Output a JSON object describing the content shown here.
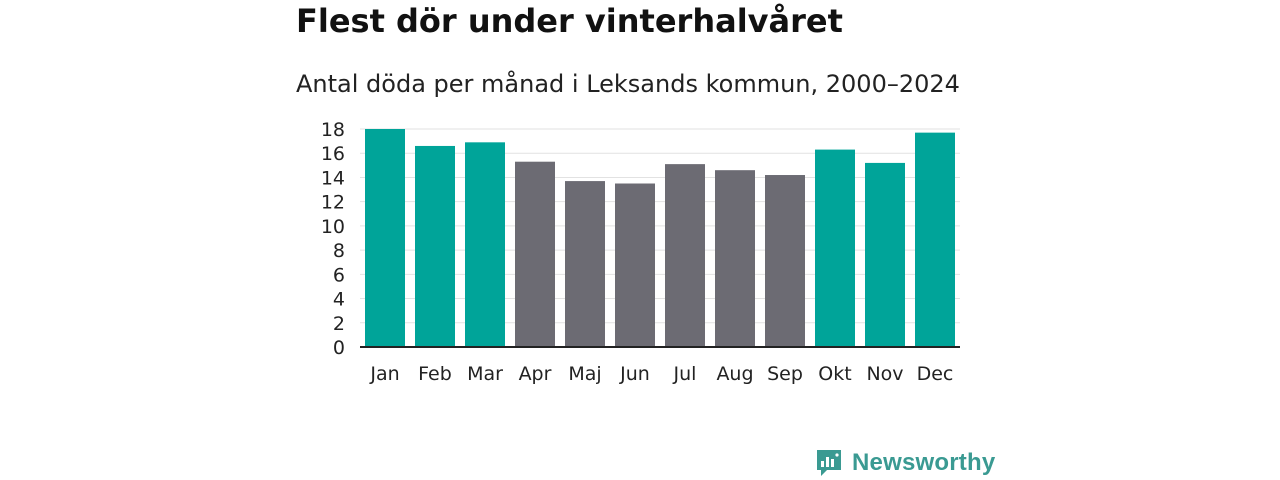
{
  "header": {
    "title": "Flest dör under vinterhalvåret",
    "subtitle": "Antal döda per månad i Leksands kommun, 2000–2024"
  },
  "brand": {
    "name": "Newsworthy",
    "icon": "newsworthy-logo-icon",
    "color": "#3a9a92"
  },
  "colors": {
    "winter": "#00a499",
    "summer": "#6c6b73",
    "grid": "#e2e2e2",
    "axis": "#222222"
  },
  "chart_data": {
    "type": "bar",
    "title": "Flest dör under vinterhalvåret",
    "subtitle": "Antal döda per månad i Leksands kommun, 2000–2024",
    "xlabel": "",
    "ylabel": "",
    "ylim": [
      0,
      18
    ],
    "yticks": [
      0,
      2,
      4,
      6,
      8,
      10,
      12,
      14,
      16,
      18
    ],
    "grid": true,
    "categories": [
      "Jan",
      "Feb",
      "Mar",
      "Apr",
      "Maj",
      "Jun",
      "Jul",
      "Aug",
      "Sep",
      "Okt",
      "Nov",
      "Dec"
    ],
    "values": [
      18.0,
      16.6,
      16.9,
      15.3,
      13.7,
      13.5,
      15.1,
      14.6,
      14.2,
      16.3,
      15.2,
      17.7
    ],
    "bar_groups": [
      "winter",
      "winter",
      "winter",
      "summer",
      "summer",
      "summer",
      "summer",
      "summer",
      "summer",
      "winter",
      "winter",
      "winter"
    ]
  }
}
